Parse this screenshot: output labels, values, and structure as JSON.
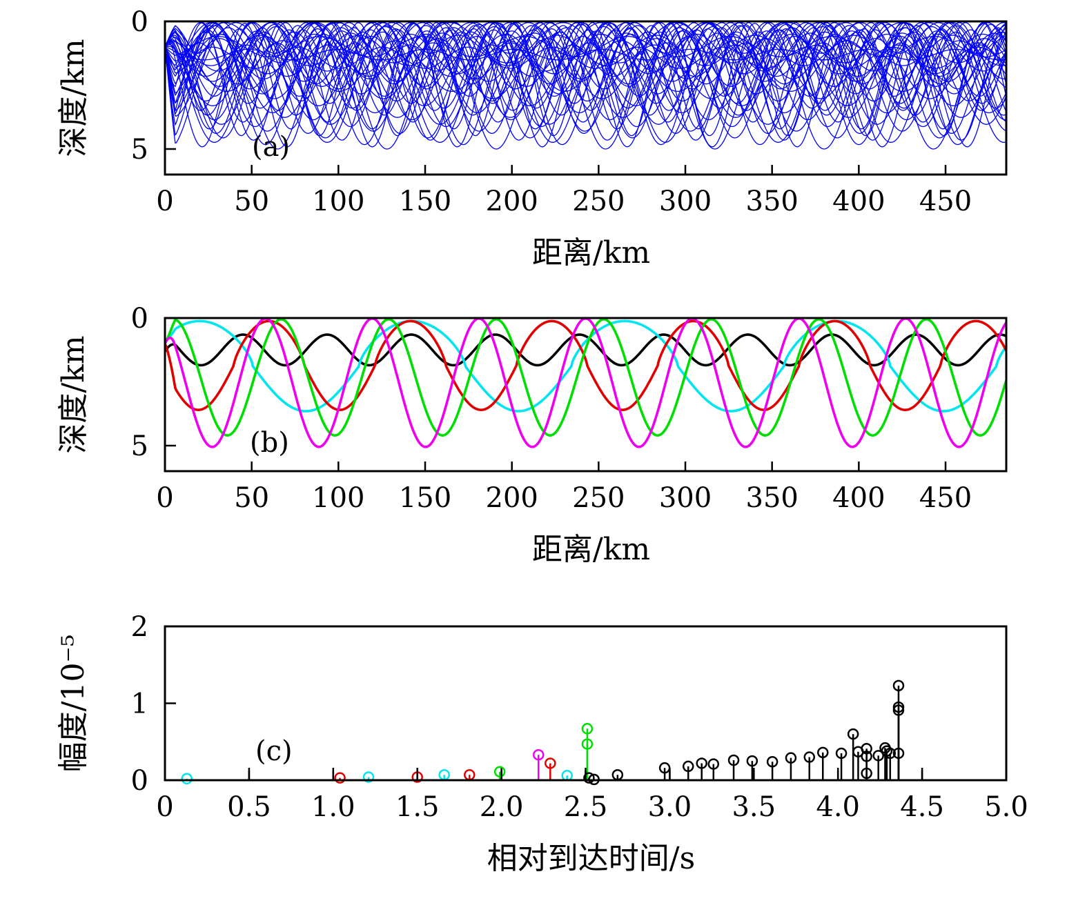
{
  "figure": {
    "panels": [
      "(a)",
      "(b)",
      "(c)"
    ]
  },
  "chart_data": [
    {
      "id": "a",
      "type": "line",
      "panel_label": "(a)",
      "xlabel": "距离/km",
      "ylabel": "深度/km",
      "xlim": [
        0,
        485
      ],
      "ylim": [
        0,
        6
      ],
      "y_inverted": true,
      "xticks": [
        0,
        50,
        100,
        150,
        200,
        250,
        300,
        350,
        400,
        450
      ],
      "yticks": [
        0,
        5
      ],
      "color": "#0000ff",
      "series_description": "ray fan from source at 1 km depth",
      "fan": {
        "count": 40,
        "source_depth": 1.0,
        "min_turning_depth": 0.05,
        "max_turning_depth": 5.0,
        "min_period": 45,
        "max_period": 65
      }
    },
    {
      "id": "b",
      "type": "line",
      "panel_label": "(b)",
      "xlabel": "距离/km",
      "ylabel": "深度/km",
      "xlim": [
        0,
        485
      ],
      "ylim": [
        0,
        6
      ],
      "y_inverted": true,
      "xticks": [
        0,
        50,
        100,
        150,
        200,
        250,
        300,
        350,
        400,
        450
      ],
      "yticks": [
        0,
        5
      ],
      "series": [
        {
          "name": "black",
          "color": "#000000",
          "depth_min": 0.65,
          "depth_max": 1.85,
          "period": 48.5,
          "x_at_min": 45,
          "start_depth": 1.3,
          "flatness": 0.0
        },
        {
          "name": "cyan",
          "color": "#00e5ee",
          "depth_min": 0.12,
          "depth_max": 3.65,
          "period": 122.5,
          "x_at_min": 20,
          "start_depth": 0.85,
          "flatness": 0.55
        },
        {
          "name": "red",
          "color": "#e00000",
          "depth_min": 0.12,
          "depth_max": 3.6,
          "period": 81.5,
          "x_at_min": 60,
          "start_depth": 1.0,
          "flatness": 0.45
        },
        {
          "name": "green",
          "color": "#00dd00",
          "depth_min": 0.05,
          "depth_max": 4.6,
          "period": 62.0,
          "x_at_min": 5,
          "start_depth": 1.0,
          "flatness": 0.0
        },
        {
          "name": "magenta",
          "color": "#ee00ee",
          "depth_min": 0.02,
          "depth_max": 5.05,
          "period": 61.5,
          "x_at_min": 58,
          "start_depth": 1.0,
          "flatness": 0.0
        }
      ]
    },
    {
      "id": "c",
      "type": "stem",
      "panel_label": "(c)",
      "xlabel": "相对到达时间/s",
      "ylabel": "幅度/10⁻⁵",
      "xlim": [
        0,
        5
      ],
      "ylim": [
        0,
        2
      ],
      "xticks": [
        0,
        0.5,
        1.0,
        1.5,
        2.0,
        2.5,
        3.0,
        3.5,
        4.0,
        4.5,
        5.0
      ],
      "xtick_labels": [
        "0",
        "0.5",
        "1.0",
        "1.5",
        "2.0",
        "2.5",
        "3.0",
        "3.5",
        "4.0",
        "4.5",
        "5.0"
      ],
      "yticks": [
        0,
        1,
        2
      ],
      "ytick_labels": [
        "0",
        "1",
        "2"
      ],
      "stems": [
        {
          "t": 0.13,
          "a": 0.02,
          "color": "#00e5ee"
        },
        {
          "t": 1.04,
          "a": 0.03,
          "color": "#e00000"
        },
        {
          "t": 1.21,
          "a": 0.04,
          "color": "#00e5ee"
        },
        {
          "t": 1.5,
          "a": 0.04,
          "color": "#e00000"
        },
        {
          "t": 1.66,
          "a": 0.07,
          "color": "#00e5ee"
        },
        {
          "t": 1.81,
          "a": 0.07,
          "color": "#e00000"
        },
        {
          "t": 1.99,
          "a": 0.11,
          "color": "#00dd00"
        },
        {
          "t": 2.22,
          "a": 0.33,
          "color": "#ee00ee"
        },
        {
          "t": 2.29,
          "a": 0.22,
          "color": "#e00000"
        },
        {
          "t": 2.39,
          "a": 0.06,
          "color": "#00e5ee"
        },
        {
          "t": 2.51,
          "a": 0.67,
          "color": "#00dd00"
        },
        {
          "t": 2.51,
          "a": 0.47,
          "color": "#00dd00"
        },
        {
          "t": 2.52,
          "a": 0.03,
          "color": "#000000"
        },
        {
          "t": 2.55,
          "a": 0.01,
          "color": "#000000"
        },
        {
          "t": 2.69,
          "a": 0.07,
          "color": "#000000"
        },
        {
          "t": 2.97,
          "a": 0.16,
          "color": "#000000"
        },
        {
          "t": 3.11,
          "a": 0.18,
          "color": "#000000"
        },
        {
          "t": 3.19,
          "a": 0.22,
          "color": "#000000"
        },
        {
          "t": 3.26,
          "a": 0.21,
          "color": "#000000"
        },
        {
          "t": 3.38,
          "a": 0.26,
          "color": "#000000"
        },
        {
          "t": 3.49,
          "a": 0.25,
          "color": "#000000"
        },
        {
          "t": 3.61,
          "a": 0.24,
          "color": "#000000"
        },
        {
          "t": 3.72,
          "a": 0.29,
          "color": "#000000"
        },
        {
          "t": 3.83,
          "a": 0.3,
          "color": "#000000"
        },
        {
          "t": 3.91,
          "a": 0.36,
          "color": "#000000"
        },
        {
          "t": 4.02,
          "a": 0.35,
          "color": "#000000"
        },
        {
          "t": 4.09,
          "a": 0.6,
          "color": "#000000"
        },
        {
          "t": 4.12,
          "a": 0.37,
          "color": "#000000"
        },
        {
          "t": 4.17,
          "a": 0.41,
          "color": "#000000"
        },
        {
          "t": 4.17,
          "a": 0.31,
          "color": "#000000"
        },
        {
          "t": 4.17,
          "a": 0.09,
          "color": "#000000"
        },
        {
          "t": 4.24,
          "a": 0.32,
          "color": "#000000"
        },
        {
          "t": 4.28,
          "a": 0.42,
          "color": "#000000"
        },
        {
          "t": 4.29,
          "a": 0.38,
          "color": "#000000"
        },
        {
          "t": 4.31,
          "a": 0.35,
          "color": "#000000"
        },
        {
          "t": 4.36,
          "a": 1.23,
          "color": "#000000"
        },
        {
          "t": 4.36,
          "a": 0.95,
          "color": "#000000"
        },
        {
          "t": 4.36,
          "a": 0.91,
          "color": "#000000"
        },
        {
          "t": 4.36,
          "a": 0.35,
          "color": "#000000"
        }
      ],
      "baseline_ticks": [
        0.5,
        1.0,
        1.5,
        2.0,
        2.5,
        3.0,
        3.5,
        4.0,
        4.5
      ]
    }
  ]
}
